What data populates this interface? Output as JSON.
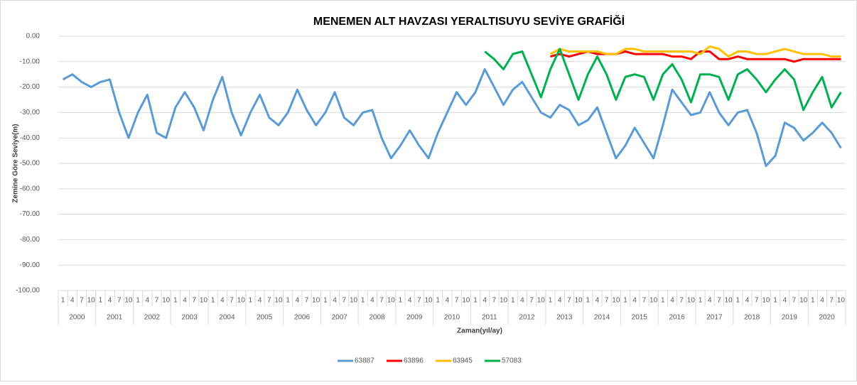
{
  "chart_data": {
    "type": "line",
    "title": "MENEMEN ALT HAVZASI YERALTISUYU SEVİYE GRAFİĞİ",
    "x_label": "Zaman(yıl/ay)",
    "y_label": "Zemine Göre Seviye(m)",
    "categories": [
      "1",
      "4",
      "7",
      "10",
      "1",
      "4",
      "7",
      "10",
      "1",
      "4",
      "7",
      "10",
      "1",
      "4",
      "7",
      "10",
      "1",
      "4",
      "7",
      "10",
      "1",
      "4",
      "7",
      "10",
      "1",
      "4",
      "7",
      "10",
      "1",
      "4",
      "7",
      "10",
      "1",
      "4",
      "7",
      "10",
      "1",
      "4",
      "7",
      "10",
      "1",
      "4",
      "7",
      "10",
      "1",
      "4",
      "7",
      "10",
      "1",
      "4",
      "7",
      "10",
      "1",
      "4",
      "7",
      "10",
      "1",
      "4",
      "7",
      "10",
      "1",
      "4",
      "7",
      "10",
      "1",
      "4",
      "7",
      "10",
      "1",
      "4",
      "7",
      "10",
      "1",
      "4",
      "7",
      "10",
      "1",
      "4",
      "7",
      "10",
      "1",
      "4",
      "7",
      "10"
    ],
    "years": [
      "2000",
      "2001",
      "2002",
      "2003",
      "2004",
      "2005",
      "2006",
      "2007",
      "2008",
      "2009",
      "2010",
      "2011",
      "2012",
      "2013",
      "2014",
      "2015",
      "2016",
      "2017",
      "2018",
      "2019",
      "2020"
    ],
    "series": [
      {
        "name": "63887",
        "color": "#5b9bd5",
        "values": [
          -17,
          -15,
          -18,
          -20,
          -18,
          -17,
          -30,
          -40,
          -30,
          -23,
          -38,
          -40,
          -28,
          -22,
          -28,
          -37,
          -25,
          -16,
          -30,
          -39,
          -30,
          -23,
          -32,
          -35,
          -30,
          -21,
          -29,
          -35,
          -30,
          -22,
          -32,
          -35,
          -30,
          -29,
          -40,
          -48,
          -43,
          -37,
          -43,
          -48,
          -38,
          -30,
          -22,
          -27,
          -22,
          -13,
          -20,
          -27,
          -21,
          -18,
          -24,
          -30,
          -32,
          -27,
          -29,
          -35,
          -33,
          -28,
          -38,
          -48,
          -43,
          -36,
          -42,
          -48,
          -35,
          -21,
          -26,
          -31,
          -30,
          -22,
          -30,
          -35,
          -30,
          -29,
          -38,
          -51,
          -47,
          -34,
          -36,
          -41,
          -38,
          -34,
          -38,
          -44
        ]
      },
      {
        "name": "63896",
        "color": "#ff0000",
        "values": [
          null,
          null,
          null,
          null,
          null,
          null,
          null,
          null,
          null,
          null,
          null,
          null,
          null,
          null,
          null,
          null,
          null,
          null,
          null,
          null,
          null,
          null,
          null,
          null,
          null,
          null,
          null,
          null,
          null,
          null,
          null,
          null,
          null,
          null,
          null,
          null,
          null,
          null,
          null,
          null,
          null,
          null,
          null,
          null,
          null,
          null,
          null,
          null,
          null,
          null,
          null,
          null,
          -8,
          -7,
          -8,
          -7,
          -6,
          -7,
          -7,
          -7,
          -6,
          -7,
          -7,
          -7,
          -7,
          -8,
          -8,
          -9,
          -6,
          -6,
          -9,
          -9,
          -8,
          -9,
          -9,
          -9,
          -9,
          -9,
          -10,
          -9,
          -9,
          -9,
          -9,
          -9
        ]
      },
      {
        "name": "63945",
        "color": "#ffc000",
        "values": [
          null,
          null,
          null,
          null,
          null,
          null,
          null,
          null,
          null,
          null,
          null,
          null,
          null,
          null,
          null,
          null,
          null,
          null,
          null,
          null,
          null,
          null,
          null,
          null,
          null,
          null,
          null,
          null,
          null,
          null,
          null,
          null,
          null,
          null,
          null,
          null,
          null,
          null,
          null,
          null,
          null,
          null,
          null,
          null,
          null,
          null,
          null,
          null,
          null,
          null,
          null,
          null,
          -7,
          -5,
          -6,
          -6,
          -6,
          -6,
          -7,
          -7,
          -5,
          -5,
          -6,
          -6,
          -6,
          -6,
          -6,
          -6,
          -7,
          -4,
          -5,
          -8,
          -6,
          -6,
          -7,
          -7,
          -6,
          -5,
          -6,
          -7,
          -7,
          -7,
          -8,
          -8
        ]
      },
      {
        "name": "57083",
        "color": "#00b050",
        "values": [
          null,
          null,
          null,
          null,
          null,
          null,
          null,
          null,
          null,
          null,
          null,
          null,
          null,
          null,
          null,
          null,
          null,
          null,
          null,
          null,
          null,
          null,
          null,
          null,
          null,
          null,
          null,
          null,
          null,
          null,
          null,
          null,
          null,
          null,
          null,
          null,
          null,
          null,
          null,
          null,
          null,
          null,
          null,
          null,
          null,
          -6,
          -9,
          -13,
          -7,
          -6,
          -15,
          -24,
          -13,
          -5,
          -15,
          -25,
          -15,
          -8,
          -15,
          -25,
          -16,
          -15,
          -16,
          -25,
          -15,
          -11,
          -17,
          -26,
          -15,
          -15,
          -16,
          -25,
          -15,
          -13,
          -17,
          -22,
          -17,
          -13,
          -17,
          -29,
          -22,
          -16,
          -28,
          -22
        ]
      }
    ],
    "ylim": [
      -100,
      0
    ],
    "yticks": [
      {
        "value": 0,
        "label": "0.00"
      },
      {
        "value": -10,
        "label": "-10.00"
      },
      {
        "value": -20,
        "label": "-20.00"
      },
      {
        "value": -30,
        "label": "-30.00"
      },
      {
        "value": -40,
        "label": "-40.00"
      },
      {
        "value": -50,
        "label": "-50.00"
      },
      {
        "value": -60,
        "label": "-60.00"
      },
      {
        "value": -70,
        "label": "-70.00"
      },
      {
        "value": -80,
        "label": "-80.00"
      },
      {
        "value": -90,
        "label": "-90.00"
      },
      {
        "value": -100,
        "label": "-100.00"
      }
    ],
    "grid": true,
    "legend": "bottom"
  }
}
